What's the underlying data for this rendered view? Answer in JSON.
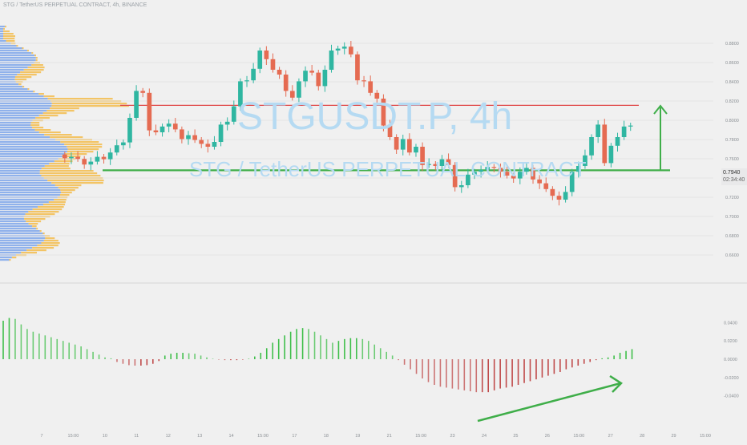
{
  "header": {
    "symbol_line": "STG / TetherUS PERPETUAL CONTRACT, 4h, BINANCE"
  },
  "watermark": {
    "line1": "STGUSDT.P, 4h",
    "line2": "STG / TetherUS PERPETUAL CONTRACT"
  },
  "last_price": {
    "value": "0.7940",
    "countdown": "02:34:40"
  },
  "chart_data": [
    {
      "type": "candlestick",
      "title": "STGUSDT.P, 4h",
      "subtitle": "STG / TetherUS PERPETUAL CONTRACT",
      "ylim": [
        0.64,
        0.9
      ],
      "y_ticks": [
        "0.8800",
        "0.8600",
        "0.8400",
        "0.8200",
        "0.8000",
        "0.7800",
        "0.7600",
        "0.7400",
        "0.7200",
        "0.7000",
        "0.6800",
        "0.6600"
      ],
      "x_ticks": [
        "7",
        "15:00",
        "10",
        "11",
        "12",
        "13",
        "14",
        "15:00",
        "17",
        "18",
        "19",
        "21",
        "15:00",
        "23",
        "24",
        "25",
        "26",
        "15:00",
        "27",
        "28",
        "29",
        "15:00"
      ],
      "ohlc_close": [
        0.7605,
        0.762,
        0.7598,
        0.754,
        0.757,
        0.762,
        0.7595,
        0.7665,
        0.774,
        0.777,
        0.8025,
        0.8305,
        0.8285,
        0.7895,
        0.7875,
        0.7935,
        0.7965,
        0.7905,
        0.7805,
        0.7845,
        0.7795,
        0.7755,
        0.7725,
        0.7775,
        0.7955,
        0.7985,
        0.8145,
        0.8405,
        0.8415,
        0.8535,
        0.8725,
        0.8635,
        0.8525,
        0.8475,
        0.8305,
        0.8235,
        0.8405,
        0.8515,
        0.8495,
        0.8355,
        0.8525,
        0.8725,
        0.8745,
        0.8765,
        0.8685,
        0.8415,
        0.8405,
        0.8285,
        0.8225,
        0.7945,
        0.7825,
        0.7695,
        0.7805,
        0.7665,
        0.7725,
        0.7535,
        0.7545,
        0.7525,
        0.7595,
        0.7535,
        0.7305,
        0.7325,
        0.7435,
        0.7465,
        0.7485,
        0.7515,
        0.7505,
        0.7465,
        0.7425,
        0.7395,
        0.7465,
        0.7505,
        0.7385,
        0.7345,
        0.7285,
        0.7215,
        0.7175,
        0.7255,
        0.7465,
        0.7525,
        0.7635,
        0.7825,
        0.7955,
        0.7555,
        0.7735,
        0.7825,
        0.7935,
        0.7945
      ],
      "levels": [
        {
          "price": 0.8155,
          "color": "#e04848"
        },
        {
          "price": 0.748,
          "color": "#3fae49"
        }
      ],
      "target_arrow": {
        "from": 0.748,
        "to": 0.815,
        "color": "#3fae49"
      }
    },
    {
      "type": "bar",
      "series_note": "momentum histogram",
      "ylim": [
        -0.07,
        0.07
      ],
      "y_ticks": [
        "0.0400",
        "0.0200",
        "0.0000",
        "-0.0200",
        "-0.0400"
      ],
      "values": [
        0.042,
        0.045,
        0.044,
        0.038,
        0.033,
        0.03,
        0.028,
        0.026,
        0.024,
        0.022,
        0.02,
        0.018,
        0.016,
        0.014,
        0.011,
        0.008,
        0.005,
        0.002,
        0.001,
        -0.003,
        -0.005,
        -0.0065,
        -0.007,
        -0.007,
        -0.0065,
        -0.005,
        -0.002,
        0.004,
        0.006,
        0.007,
        0.007,
        0.0065,
        0.006,
        0.004,
        0.002,
        0.0005,
        -0.0005,
        -0.001,
        -0.001,
        -0.001,
        -0.0005,
        0.0005,
        0.003,
        0.007,
        0.012,
        0.018,
        0.022,
        0.026,
        0.03,
        0.033,
        0.034,
        0.033,
        0.03,
        0.026,
        0.022,
        0.018,
        0.02,
        0.022,
        0.023,
        0.023,
        0.022,
        0.02,
        0.016,
        0.012,
        0.008,
        0.004,
        -0.001,
        -0.006,
        -0.011,
        -0.016,
        -0.021,
        -0.025,
        -0.028,
        -0.03,
        -0.031,
        -0.032,
        -0.033,
        -0.034,
        -0.035,
        -0.036,
        -0.036,
        -0.036,
        -0.034,
        -0.032,
        -0.031,
        -0.03,
        -0.028,
        -0.026,
        -0.024,
        -0.022,
        -0.02,
        -0.018,
        -0.016,
        -0.014,
        -0.011,
        -0.009,
        -0.007,
        -0.005,
        -0.003,
        -0.001,
        0.001,
        0.002,
        0.004,
        0.007,
        0.009,
        0.011
      ],
      "divergence_arrow": {
        "color": "#3fae49"
      }
    }
  ],
  "colors": {
    "up": "#2fb6a1",
    "down": "#e56b52",
    "hist_up": "#3fbf4a",
    "hist_down": "#c04a4a",
    "profile_blue": "#3f7ee8",
    "profile_orange": "#f4b942",
    "watermark": "#b5daf2",
    "resistance": "#e04848",
    "support": "#3fae49"
  }
}
